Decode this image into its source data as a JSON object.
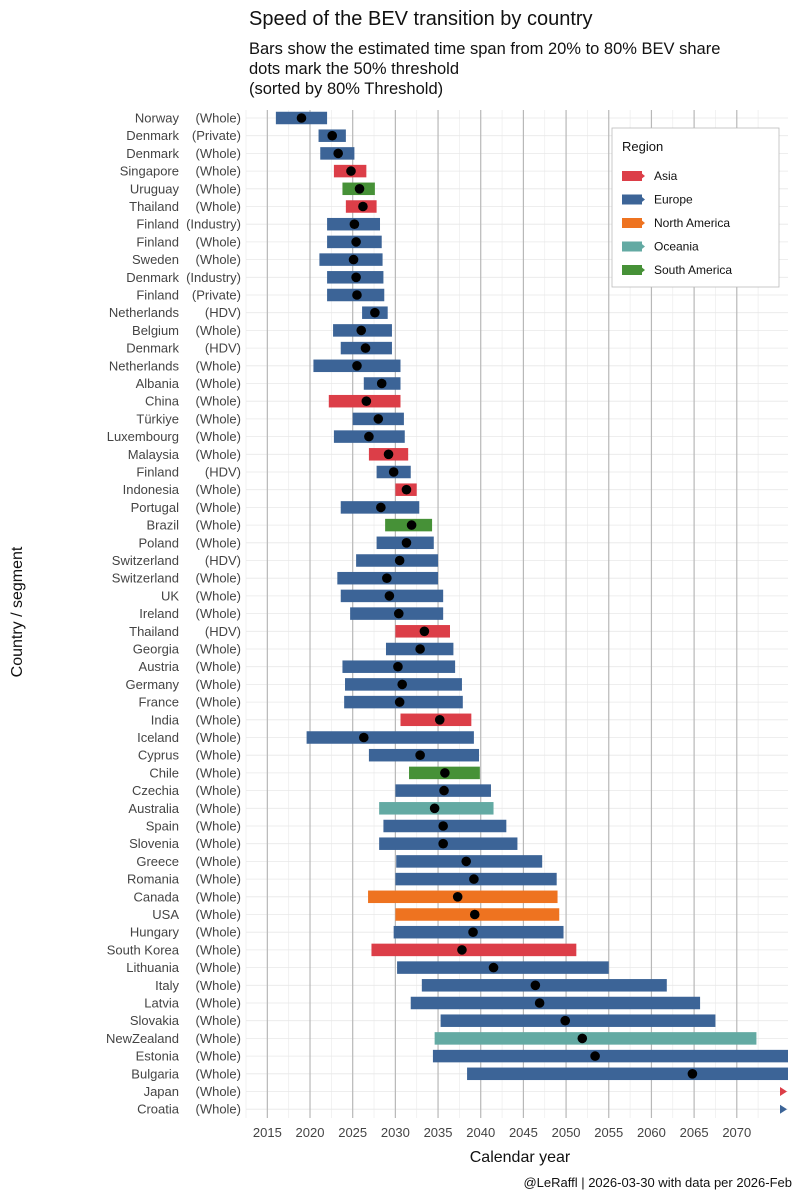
{
  "chart_data": {
    "type": "range_bar",
    "title": "Speed of the BEV transition by country",
    "subtitle": [
      "Bars show the estimated time span from 20% to 80% BEV share",
      "dots mark the 50% threshold",
      "(sorted by 80% Threshold)"
    ],
    "xlabel": "Calendar year",
    "ylabel": "Country / segment",
    "caption": "@LeRaffl | 2026-03-30 with data per 2026-Feb",
    "xlim": [
      2012.5,
      2076
    ],
    "xticks": [
      2015,
      2020,
      2025,
      2030,
      2035,
      2040,
      2045,
      2050,
      2055,
      2060,
      2065,
      2070
    ],
    "xtick_labels": [
      "2015",
      "2020",
      "2025",
      "2030",
      "2035",
      "2040",
      "2045",
      "2050",
      "2055",
      "2060",
      "2065",
      "2070"
    ],
    "legend": {
      "title": "Region",
      "position": "top-right",
      "entries": [
        {
          "name": "Asia",
          "color": "#dc3e48"
        },
        {
          "name": "Europe",
          "color": "#3c6497"
        },
        {
          "name": "North America",
          "color": "#ee7320"
        },
        {
          "name": "Oceania",
          "color": "#63aaa3"
        },
        {
          "name": "South America",
          "color": "#469137"
        }
      ]
    },
    "rows": [
      {
        "country": "Norway",
        "segment": "(Whole)",
        "region": "Europe",
        "start": 2016,
        "end": 2022,
        "mid": 2019
      },
      {
        "country": "Denmark",
        "segment": "(Private)",
        "region": "Europe",
        "start": 2021,
        "end": 2024.2,
        "mid": 2022.6
      },
      {
        "country": "Denmark",
        "segment": "(Whole)",
        "region": "Europe",
        "start": 2021.2,
        "end": 2025.2,
        "mid": 2023.3
      },
      {
        "country": "Singapore",
        "segment": "(Whole)",
        "region": "Asia",
        "start": 2022.8,
        "end": 2026.6,
        "mid": 2024.8
      },
      {
        "country": "Uruguay",
        "segment": "(Whole)",
        "region": "South America",
        "start": 2023.8,
        "end": 2027.6,
        "mid": 2025.8
      },
      {
        "country": "Thailand",
        "segment": "(Whole)",
        "region": "Asia",
        "start": 2024.2,
        "end": 2027.8,
        "mid": 2026.2
      },
      {
        "country": "Finland",
        "segment": "(Industry)",
        "region": "Europe",
        "start": 2022,
        "end": 2028.2,
        "mid": 2025.2
      },
      {
        "country": "Finland",
        "segment": "(Whole)",
        "region": "Europe",
        "start": 2022,
        "end": 2028.4,
        "mid": 2025.4
      },
      {
        "country": "Sweden",
        "segment": "(Whole)",
        "region": "Europe",
        "start": 2021.1,
        "end": 2028.5,
        "mid": 2025.1
      },
      {
        "country": "Denmark",
        "segment": "(Industry)",
        "region": "Europe",
        "start": 2022,
        "end": 2028.6,
        "mid": 2025.4
      },
      {
        "country": "Finland",
        "segment": "(Private)",
        "region": "Europe",
        "start": 2022,
        "end": 2028.7,
        "mid": 2025.5
      },
      {
        "country": "Netherlands",
        "segment": "(HDV)",
        "region": "Europe",
        "start": 2026.1,
        "end": 2029.1,
        "mid": 2027.6
      },
      {
        "country": "Belgium",
        "segment": "(Whole)",
        "region": "Europe",
        "start": 2022.7,
        "end": 2029.6,
        "mid": 2026
      },
      {
        "country": "Denmark",
        "segment": "(HDV)",
        "region": "Europe",
        "start": 2023.6,
        "end": 2029.6,
        "mid": 2026.5
      },
      {
        "country": "Netherlands",
        "segment": "(Whole)",
        "region": "Europe",
        "start": 2020.4,
        "end": 2030.6,
        "mid": 2025.5
      },
      {
        "country": "Albania",
        "segment": "(Whole)",
        "region": "Europe",
        "start": 2026.3,
        "end": 2030.6,
        "mid": 2028.4
      },
      {
        "country": "China",
        "segment": "(Whole)",
        "region": "Asia",
        "start": 2022.2,
        "end": 2030.6,
        "mid": 2026.6
      },
      {
        "country": "Türkiye",
        "segment": "(Whole)",
        "region": "Europe",
        "start": 2025,
        "end": 2031,
        "mid": 2028
      },
      {
        "country": "Luxembourg",
        "segment": "(Whole)",
        "region": "Europe",
        "start": 2022.8,
        "end": 2031.1,
        "mid": 2026.9
      },
      {
        "country": "Malaysia",
        "segment": "(Whole)",
        "region": "Asia",
        "start": 2026.9,
        "end": 2031.5,
        "mid": 2029.2
      },
      {
        "country": "Finland",
        "segment": "(HDV)",
        "region": "Europe",
        "start": 2027.8,
        "end": 2031.8,
        "mid": 2029.8
      },
      {
        "country": "Indonesia",
        "segment": "(Whole)",
        "region": "Asia",
        "start": 2030,
        "end": 2032.5,
        "mid": 2031.3
      },
      {
        "country": "Portugal",
        "segment": "(Whole)",
        "region": "Europe",
        "start": 2023.6,
        "end": 2032.8,
        "mid": 2028.3
      },
      {
        "country": "Brazil",
        "segment": "(Whole)",
        "region": "South America",
        "start": 2028.8,
        "end": 2034.3,
        "mid": 2031.9
      },
      {
        "country": "Poland",
        "segment": "(Whole)",
        "region": "Europe",
        "start": 2027.8,
        "end": 2034.5,
        "mid": 2031.3
      },
      {
        "country": "Switzerland",
        "segment": "(HDV)",
        "region": "Europe",
        "start": 2025.4,
        "end": 2035,
        "mid": 2030.5
      },
      {
        "country": "Switzerland",
        "segment": "(Whole)",
        "region": "Europe",
        "start": 2023.2,
        "end": 2035,
        "mid": 2029
      },
      {
        "country": "UK",
        "segment": "(Whole)",
        "region": "Europe",
        "start": 2023.6,
        "end": 2035.6,
        "mid": 2029.3
      },
      {
        "country": "Ireland",
        "segment": "(Whole)",
        "region": "Europe",
        "start": 2024.7,
        "end": 2035.6,
        "mid": 2030.4
      },
      {
        "country": "Thailand",
        "segment": "(HDV)",
        "region": "Asia",
        "start": 2030,
        "end": 2036.4,
        "mid": 2033.4
      },
      {
        "country": "Georgia",
        "segment": "(Whole)",
        "region": "Europe",
        "start": 2028.9,
        "end": 2036.8,
        "mid": 2032.9
      },
      {
        "country": "Austria",
        "segment": "(Whole)",
        "region": "Europe",
        "start": 2023.8,
        "end": 2037,
        "mid": 2030.3
      },
      {
        "country": "Germany",
        "segment": "(Whole)",
        "region": "Europe",
        "start": 2024.1,
        "end": 2037.8,
        "mid": 2030.8
      },
      {
        "country": "France",
        "segment": "(Whole)",
        "region": "Europe",
        "start": 2024,
        "end": 2037.9,
        "mid": 2030.5
      },
      {
        "country": "India",
        "segment": "(Whole)",
        "region": "Asia",
        "start": 2030.6,
        "end": 2038.9,
        "mid": 2035.2
      },
      {
        "country": "Iceland",
        "segment": "(Whole)",
        "region": "Europe",
        "start": 2019.6,
        "end": 2039.2,
        "mid": 2026.3
      },
      {
        "country": "Cyprus",
        "segment": "(Whole)",
        "region": "Europe",
        "start": 2026.9,
        "end": 2039.8,
        "mid": 2032.9
      },
      {
        "country": "Chile",
        "segment": "(Whole)",
        "region": "South America",
        "start": 2031.6,
        "end": 2039.9,
        "mid": 2035.8
      },
      {
        "country": "Czechia",
        "segment": "(Whole)",
        "region": "Europe",
        "start": 2030,
        "end": 2041.2,
        "mid": 2035.7
      },
      {
        "country": "Australia",
        "segment": "(Whole)",
        "region": "Oceania",
        "start": 2028.1,
        "end": 2041.5,
        "mid": 2034.6
      },
      {
        "country": "Spain",
        "segment": "(Whole)",
        "region": "Europe",
        "start": 2028.6,
        "end": 2043,
        "mid": 2035.6
      },
      {
        "country": "Slovenia",
        "segment": "(Whole)",
        "region": "Europe",
        "start": 2028.1,
        "end": 2044.3,
        "mid": 2035.6
      },
      {
        "country": "Greece",
        "segment": "(Whole)",
        "region": "Europe",
        "start": 2030.1,
        "end": 2047.2,
        "mid": 2038.3
      },
      {
        "country": "Romania",
        "segment": "(Whole)",
        "region": "Europe",
        "start": 2030,
        "end": 2048.9,
        "mid": 2039.2
      },
      {
        "country": "Canada",
        "segment": "(Whole)",
        "region": "North America",
        "start": 2026.8,
        "end": 2049,
        "mid": 2037.3
      },
      {
        "country": "USA",
        "segment": "(Whole)",
        "region": "North America",
        "start": 2030,
        "end": 2049.2,
        "mid": 2039.3
      },
      {
        "country": "Hungary",
        "segment": "(Whole)",
        "region": "Europe",
        "start": 2029.8,
        "end": 2049.7,
        "mid": 2039.1
      },
      {
        "country": "South Korea",
        "segment": "(Whole)",
        "region": "Asia",
        "start": 2027.2,
        "end": 2051.2,
        "mid": 2037.8
      },
      {
        "country": "Lithuania",
        "segment": "(Whole)",
        "region": "Europe",
        "start": 2030.2,
        "end": 2055,
        "mid": 2041.5
      },
      {
        "country": "Italy",
        "segment": "(Whole)",
        "region": "Europe",
        "start": 2033.1,
        "end": 2061.8,
        "mid": 2046.4
      },
      {
        "country": "Latvia",
        "segment": "(Whole)",
        "region": "Europe",
        "start": 2031.8,
        "end": 2065.7,
        "mid": 2046.9
      },
      {
        "country": "Slovakia",
        "segment": "(Whole)",
        "region": "Europe",
        "start": 2035.3,
        "end": 2067.5,
        "mid": 2049.9
      },
      {
        "country": "NewZealand",
        "segment": "(Whole)",
        "region": "Oceania",
        "start": 2034.6,
        "end": 2072.3,
        "mid": 2051.9
      },
      {
        "country": "Estonia",
        "segment": "(Whole)",
        "region": "Europe",
        "start": 2034.4,
        "end": 2076,
        "mid": 2053.4,
        "open_end": true
      },
      {
        "country": "Bulgaria",
        "segment": "(Whole)",
        "region": "Europe",
        "start": 2038.4,
        "end": 2076,
        "mid": 2064.8,
        "open_end": true
      },
      {
        "country": "Japan",
        "segment": "(Whole)",
        "region": "Asia",
        "start": null,
        "end": null,
        "mid": null,
        "open_end": true
      },
      {
        "country": "Croatia",
        "segment": "(Whole)",
        "region": "Europe",
        "start": null,
        "end": null,
        "mid": null,
        "open_end": true
      }
    ]
  }
}
